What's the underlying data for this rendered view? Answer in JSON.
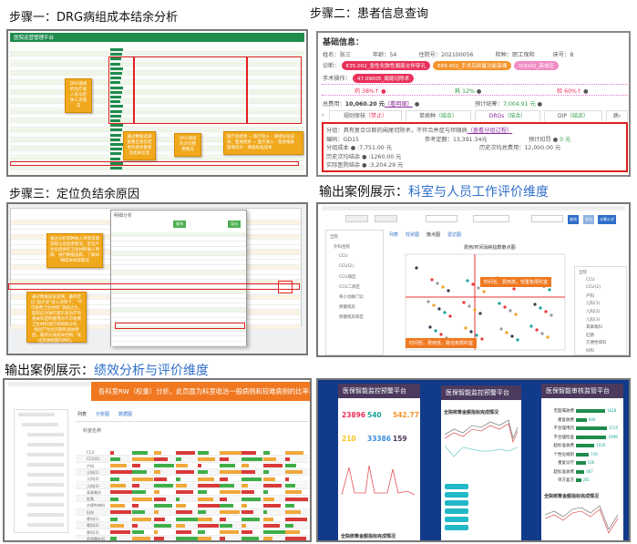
{
  "titles": {
    "step1": "步骤一：DRG病组成本结余分析",
    "step2": "步骤二：患者信息查询",
    "step3": "步骤三：定位负结余原因",
    "case1_prefix": "输出案例展示：",
    "case1_hl": "科室与人员工作评价维度",
    "case2_prefix": "输出案例展示：",
    "case2_hl": "绩效分析与评价维度"
  },
  "panel1": {
    "app_title": "医院运营管理平台",
    "callouts": [
      "DRG病组的治疗收入及与结余人次情况",
      "通过数据选择查看出现负结余的具体患者及相关信息",
      "DRG病组的次均费用情况",
      "医疗总结余 = 医疗收入 - 病组标准成本；医保结余 = 医疗收入 - 医保报账 - 医保支付 - 病组标准成本"
    ]
  },
  "panel2": {
    "heading": "基础信息：",
    "name_label": "姓名：",
    "name": "张三",
    "age_label": "年龄：",
    "age": "54",
    "admission_label": "住院号：",
    "admission": "202100056",
    "insurance_label": "险种：",
    "insurance": "职工保险",
    "bed_label": "床号：",
    "bed": "8",
    "diagnosis_label": "诊断：",
    "diagnoses": [
      {
        "text": "K35.002_急性化脓性阑尾炎伴穿孔",
        "color": "#e8315a"
      },
      {
        "text": "E89.402_手术后卵巢功能衰竭",
        "color": "#f5932a"
      },
      {
        "text": "I10x02_高血压",
        "color": "#f28cc5"
      }
    ],
    "surgery_label": "手术操作：",
    "surgery": "47.09005_阑尾切除术",
    "ratios": [
      {
        "text": "药 38%↑",
        "color": "#e8315a"
      },
      {
        "text": "耗 12%",
        "color": "#2e9e4a"
      },
      {
        "text": "检 60%↑",
        "color": "#e8315a"
      }
    ],
    "total_label": "总费用：",
    "total": "10,060.20 元",
    "detail_link": "（看明细）",
    "plan_label": "预计统筹：",
    "plan": "7,004.91 元",
    "tabs": [
      {
        "label": "规则审核",
        "status": "（禁止）",
        "color": "#e8315a"
      },
      {
        "label": "单病种",
        "status": "（结余）",
        "color": "#2e9e4a"
      },
      {
        "label": "DRGs",
        "status": "（结余）",
        "color": "#2e9e4a"
      },
      {
        "label": "DIP",
        "status": "（结余）",
        "color": "#2e9e4a"
      },
      {
        "label": "病"
      }
    ],
    "group_label": "分组：",
    "group": "具有复合诊断的阑尾切除术，不伴合并症与伴随病",
    "group_link": "（查看分组过程）",
    "code_label": "编码：",
    "code": "GD15",
    "ref_label": "参考定额：",
    "ref": "13,391.34元",
    "deduct_label": "预计扣罚",
    "deduct": "0 元",
    "cost_label": "分组成本",
    "cost": ":7,751.00 元",
    "hist_avg_label": "历史次均总费用：",
    "hist_avg": "12,000.00 元",
    "hist_bal_label": "历史次均结余",
    "hist_bal": ":1260.00 元",
    "actual_label": "实际医院结余",
    "actual": ":3,204.29 元"
  },
  "panel3": {
    "dialog_title": "明细分析",
    "callouts": [
      "通过分析病种收入项目资源消耗以及盈余情况，定位产生负结余的卫生材料收入项目，进行数据追踪，了解详细成本构成情况",
      "通过数据层层追溯，最终定位“超声波”收入项目下，“不可收费卫生材料”消耗过大。医院应对进行超声波治疗的相关科室所使用的不可收费卫生材料进行调研和分析，找出产生此问题的具体原因，最终达成成本控制、优化资源配置的目的。"
    ],
    "button": "查询",
    "export": "导出"
  },
  "panel4": {
    "chart_title": "费用/时间消耗指数散点图",
    "tabs": [
      "列表",
      "柱状图",
      "散点图",
      "雷达图"
    ],
    "buttons": [
      "查询",
      "导出",
      "计算公式"
    ],
    "quadrant_high": "时间长、费用高，较重象限科室",
    "quadrant_low": "时间短、费用低，最佳象限科室",
    "tree": [
      "全院",
      "外科住院",
      "CCU",
      "CCU(2)",
      "CCU病区",
      "CCU二病区",
      "骨小动脉门诊",
      "保健病房",
      "保健病房病区"
    ],
    "right_tree": [
      "全院",
      "CCU",
      "CCU(2)",
      "产科",
      "儿科(1)",
      "儿科(2)",
      "儿科(3)",
      "耳鼻喉科",
      "肛肠",
      "方便性病科",
      "妇科"
    ]
  },
  "panel5": {
    "banner": "各科室RW（权重）分析，此页面为科室收治一般病例和较难病例的比率表",
    "tabs": [
      "列表",
      "分析图",
      "数据图"
    ],
    "col_first": "科室名称",
    "rows": [
      "CCU",
      "CCU(2)",
      "产科",
      "儿科(1)",
      "儿科(2)",
      "儿科(3)",
      "耳鼻喉科",
      "肛肠",
      "方便性病科",
      "妇科",
      "骨科(1)",
      "骨科(2)",
      "骨科(3)",
      "肝胆胰外科"
    ]
  },
  "panel6": {
    "screens": [
      {
        "title": "医保智能监控预警平台",
        "tabs": [
          "预警总揽",
          "资料库"
        ],
        "stats": [
          {
            "v": "23896",
            "c": "#e8315a"
          },
          {
            "v": "540",
            "c": "#1aa39a"
          },
          {
            "v": "542.77",
            "c": "#f5932a"
          },
          {
            "v": "210",
            "c": "#f5c518"
          },
          {
            "v": "33386",
            "c": "#3b8de0"
          },
          {
            "v": "159",
            "c": "#4b3a5e"
          }
        ],
        "section": "全院统筹金额指标完成情况"
      },
      {
        "title": "医保智能监控预警平台",
        "tabs": [
          "预警总揽",
          "资料库"
        ],
        "section": "全院统筹金额指标完成情况"
      },
      {
        "title": "医保智能审核监管平台",
        "tabs": [
          "预警总揽",
          "资料库"
        ],
        "section": "全院统筹金额指标完成情况",
        "bars": [
          {
            "label": "无医嘱收费",
            "v": "1628"
          },
          {
            "label": "重复收费",
            "v": "600"
          },
          {
            "label": "不合理用药",
            "v": "1725"
          },
          {
            "label": "不合理检查",
            "v": "1699"
          },
          {
            "label": "超标准收费",
            "v": "1026"
          },
          {
            "label": "个性化规则",
            "v": "719"
          },
          {
            "label": "重复诊疗",
            "v": "536"
          },
          {
            "label": "超标准收费",
            "v": "467"
          },
          {
            "label": "单方复方",
            "v": "281"
          }
        ]
      }
    ]
  },
  "colors": {
    "green": "#1f8c4d",
    "orange": "#f0a81c",
    "red": "#e02020",
    "navy": "#123a8a",
    "accent_blue": "#2f6fc9"
  }
}
